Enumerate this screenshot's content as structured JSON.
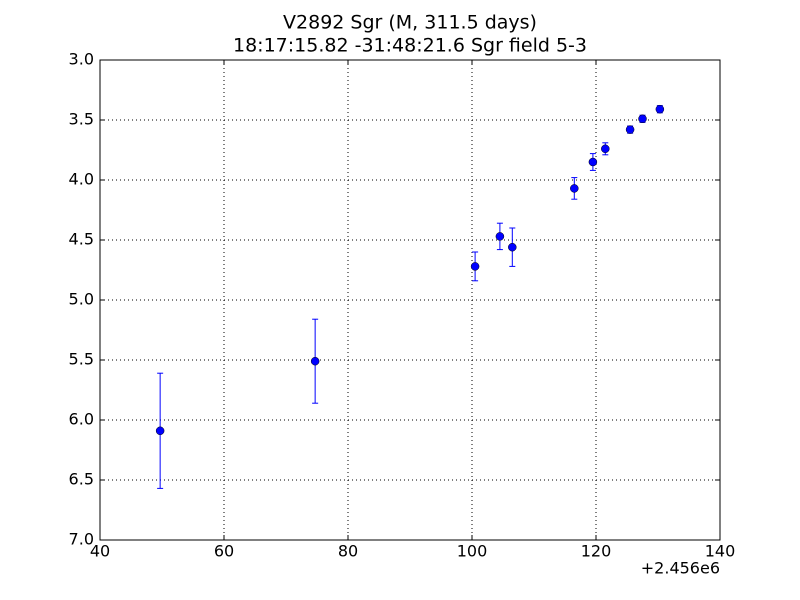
{
  "chart_data": {
    "type": "scatter",
    "title": "V2892 Sgr  (M, 311.5 days)",
    "subtitle": "18:17:15.82 -31:48:21.6 Sgr field 5-3",
    "x_offset_label": "+2.456e6",
    "series": [
      {
        "color": "#0000ff",
        "x": [
          49.7,
          74.7,
          100.5,
          104.5,
          106.5,
          116.5,
          119.5,
          121.5,
          125.5,
          127.5,
          130.3
        ],
        "values": [
          6.09,
          5.51,
          4.72,
          4.47,
          4.56,
          4.07,
          3.85,
          3.74,
          3.58,
          3.49,
          3.41
        ],
        "errors": [
          0.48,
          0.35,
          0.12,
          0.11,
          0.16,
          0.09,
          0.07,
          0.05,
          0.03,
          0.03,
          0.03
        ]
      }
    ],
    "xlim": [
      40,
      140
    ],
    "xticks": [
      40,
      60,
      80,
      100,
      120,
      140
    ],
    "ylim": [
      7,
      3
    ],
    "yticks": [
      {
        "value": 3,
        "label": "3.0"
      },
      3.5,
      {
        "value": 4,
        "label": "4.0"
      },
      4.5,
      {
        "value": 5,
        "label": "5.0"
      },
      5.5,
      {
        "value": 6,
        "label": "6.0"
      },
      6.5,
      {
        "value": 7,
        "label": "7.0"
      }
    ],
    "grid": true
  }
}
